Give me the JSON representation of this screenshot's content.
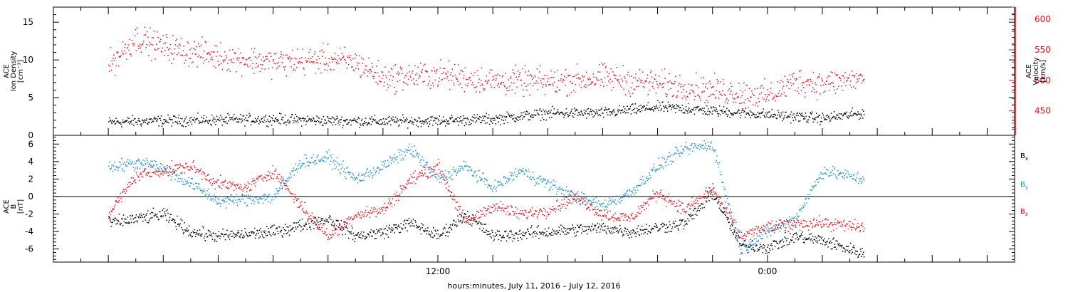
{
  "chart_data": [
    {
      "type": "scatter",
      "panel": "top",
      "ylabel": "ACE Ion Density [cm⁻³]",
      "ylabel_lines": [
        "ACE",
        "Ion Density",
        "[cm⁻³]"
      ],
      "ylim": [
        0,
        17
      ],
      "yticks": [
        0,
        5,
        10,
        15
      ],
      "y2label": "ACE Velocity [km/s]",
      "y2label_lines": [
        "ACE",
        "Velocity",
        "[km/s]"
      ],
      "y2lim": [
        410,
        620
      ],
      "y2ticks": [
        450,
        500,
        550,
        600
      ],
      "series": [
        {
          "name": "Ion Density",
          "axis": "left",
          "color": "#000000",
          "x": [
            0,
            2,
            4,
            6,
            8,
            10,
            12,
            14,
            16,
            18,
            20,
            22,
            24,
            26,
            27.5
          ],
          "values": [
            1.8,
            2.0,
            2.1,
            2.2,
            2.0,
            1.9,
            2.0,
            2.2,
            3.0,
            3.0,
            3.8,
            3.3,
            2.8,
            2.3,
            3.0
          ]
        },
        {
          "name": "Velocity",
          "axis": "right",
          "color": "#e8141e",
          "x": [
            0,
            1,
            2,
            4,
            6,
            8,
            9,
            10,
            12,
            14,
            16,
            18,
            20,
            22,
            24,
            25,
            26,
            27.5
          ],
          "values": [
            525,
            570,
            555,
            540,
            530,
            535,
            530,
            505,
            510,
            500,
            498,
            505,
            495,
            485,
            475,
            500,
            495,
            505
          ]
        }
      ]
    },
    {
      "type": "scatter",
      "panel": "bottom",
      "ylabel": "ACE B [nT]",
      "ylabel_lines": [
        "ACE",
        "B",
        "[nT]"
      ],
      "ylim": [
        -7.5,
        7
      ],
      "yticks": [
        -6,
        -4,
        -2,
        0,
        2,
        4,
        6
      ],
      "zero_line": true,
      "series": [
        {
          "name": "Bx",
          "color": "#000000",
          "x": [
            0,
            2,
            3,
            4,
            6,
            8,
            9,
            10,
            11,
            12,
            13,
            14,
            16,
            18,
            19,
            21,
            22,
            23,
            24,
            25,
            26,
            27.5
          ],
          "values": [
            -3.0,
            -2.0,
            -4.0,
            -4.5,
            -4.0,
            -2.5,
            -4.5,
            -4.0,
            -3.0,
            -4.5,
            -2.0,
            -4.5,
            -4.0,
            -3.5,
            -4.0,
            -3.0,
            0.5,
            -5.5,
            -5.8,
            -4.5,
            -5.0,
            -6.5
          ]
        },
        {
          "name": "By",
          "color": "#1f8fd6",
          "x": [
            0,
            1.5,
            3,
            4,
            6,
            7,
            8,
            9,
            10,
            11,
            12,
            13,
            14,
            15,
            16,
            17,
            18,
            19,
            20,
            21,
            22,
            23,
            24,
            25,
            26,
            27.5
          ],
          "values": [
            3.5,
            4.0,
            1.5,
            -0.5,
            0.0,
            4.0,
            4.5,
            2.0,
            3.5,
            5.5,
            2.0,
            3.5,
            1.0,
            3.0,
            1.5,
            0.0,
            -1.0,
            0.5,
            3.5,
            5.5,
            6.0,
            -6.0,
            -4.0,
            -2.5,
            3.0,
            2.0
          ]
        },
        {
          "name": "Bz",
          "color": "#e8141e",
          "x": [
            0,
            1,
            3,
            4,
            5,
            6,
            7,
            8,
            9,
            10,
            11,
            12,
            13,
            14,
            15,
            16,
            17,
            18,
            19,
            20,
            21,
            22,
            23,
            24,
            25,
            26,
            27.5
          ],
          "values": [
            -2.0,
            2.5,
            3.5,
            1.5,
            1.0,
            3.0,
            -1.0,
            -4.5,
            -2.0,
            -1.5,
            2.0,
            3.5,
            -3.0,
            -1.0,
            -2.0,
            -1.5,
            0.0,
            -2.0,
            -2.5,
            0.5,
            -1.5,
            1.0,
            -4.5,
            -3.5,
            -3.0,
            -3.0,
            -3.5
          ]
        }
      ]
    }
  ],
  "x_axis": {
    "xlabel": "hours:minutes, July 11, 2016 – July 12, 2016",
    "xlim_hours": [
      -2,
      33
    ],
    "labeled_ticks": [
      {
        "label": "12:00",
        "hour": 12
      },
      {
        "label": "0:00",
        "hour": 24
      }
    ]
  },
  "legend": {
    "placement": "right",
    "items": [
      {
        "base": "B",
        "sub": "x",
        "color": "#000000"
      },
      {
        "base": "B",
        "sub": "y",
        "color": "#1f8fd6"
      },
      {
        "base": "B",
        "sub": "z",
        "color": "#e8141e"
      }
    ]
  }
}
